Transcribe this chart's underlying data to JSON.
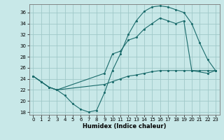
{
  "xlabel": "Humidex (Indice chaleur)",
  "bg_color": "#c8e8e8",
  "grid_color": "#a0c8c8",
  "line_color": "#1a6b6b",
  "xlim": [
    -0.5,
    23.5
  ],
  "ylim": [
    17.5,
    37.5
  ],
  "yticks": [
    18,
    20,
    22,
    24,
    26,
    28,
    30,
    32,
    34,
    36
  ],
  "xticks": [
    0,
    1,
    2,
    3,
    4,
    5,
    6,
    7,
    8,
    9,
    10,
    11,
    12,
    13,
    14,
    15,
    16,
    17,
    18,
    19,
    20,
    21,
    22,
    23
  ],
  "line1_x": [
    0,
    1,
    2,
    3,
    4,
    5,
    6,
    7,
    8,
    9,
    10,
    11,
    12,
    13,
    14,
    15,
    16,
    17,
    18,
    19,
    20,
    21,
    22,
    23
  ],
  "line1_y": [
    24.5,
    23.5,
    22.5,
    22.0,
    21.0,
    19.5,
    18.5,
    18.0,
    18.3,
    21.5,
    25.5,
    28.5,
    32.0,
    34.5,
    36.2,
    37.0,
    37.2,
    37.0,
    36.5,
    36.0,
    34.0,
    30.5,
    27.5,
    25.5
  ],
  "line2_x": [
    0,
    1,
    2,
    3,
    9,
    10,
    11,
    12,
    13,
    14,
    15,
    16,
    17,
    18,
    19,
    20,
    22,
    23
  ],
  "line2_y": [
    24.5,
    23.5,
    22.5,
    22.0,
    25.0,
    28.5,
    29.0,
    31.0,
    31.5,
    33.0,
    34.0,
    35.0,
    34.5,
    34.0,
    34.5,
    25.5,
    25.0,
    25.5
  ],
  "line3_x": [
    0,
    1,
    2,
    3,
    9,
    10,
    11,
    12,
    13,
    14,
    15,
    16,
    17,
    18,
    19,
    20,
    21,
    22,
    23
  ],
  "line3_y": [
    24.5,
    23.5,
    22.5,
    22.0,
    23.0,
    23.5,
    24.0,
    24.5,
    24.7,
    25.0,
    25.3,
    25.5,
    25.5,
    25.5,
    25.5,
    25.5,
    25.5,
    25.5,
    25.5
  ]
}
